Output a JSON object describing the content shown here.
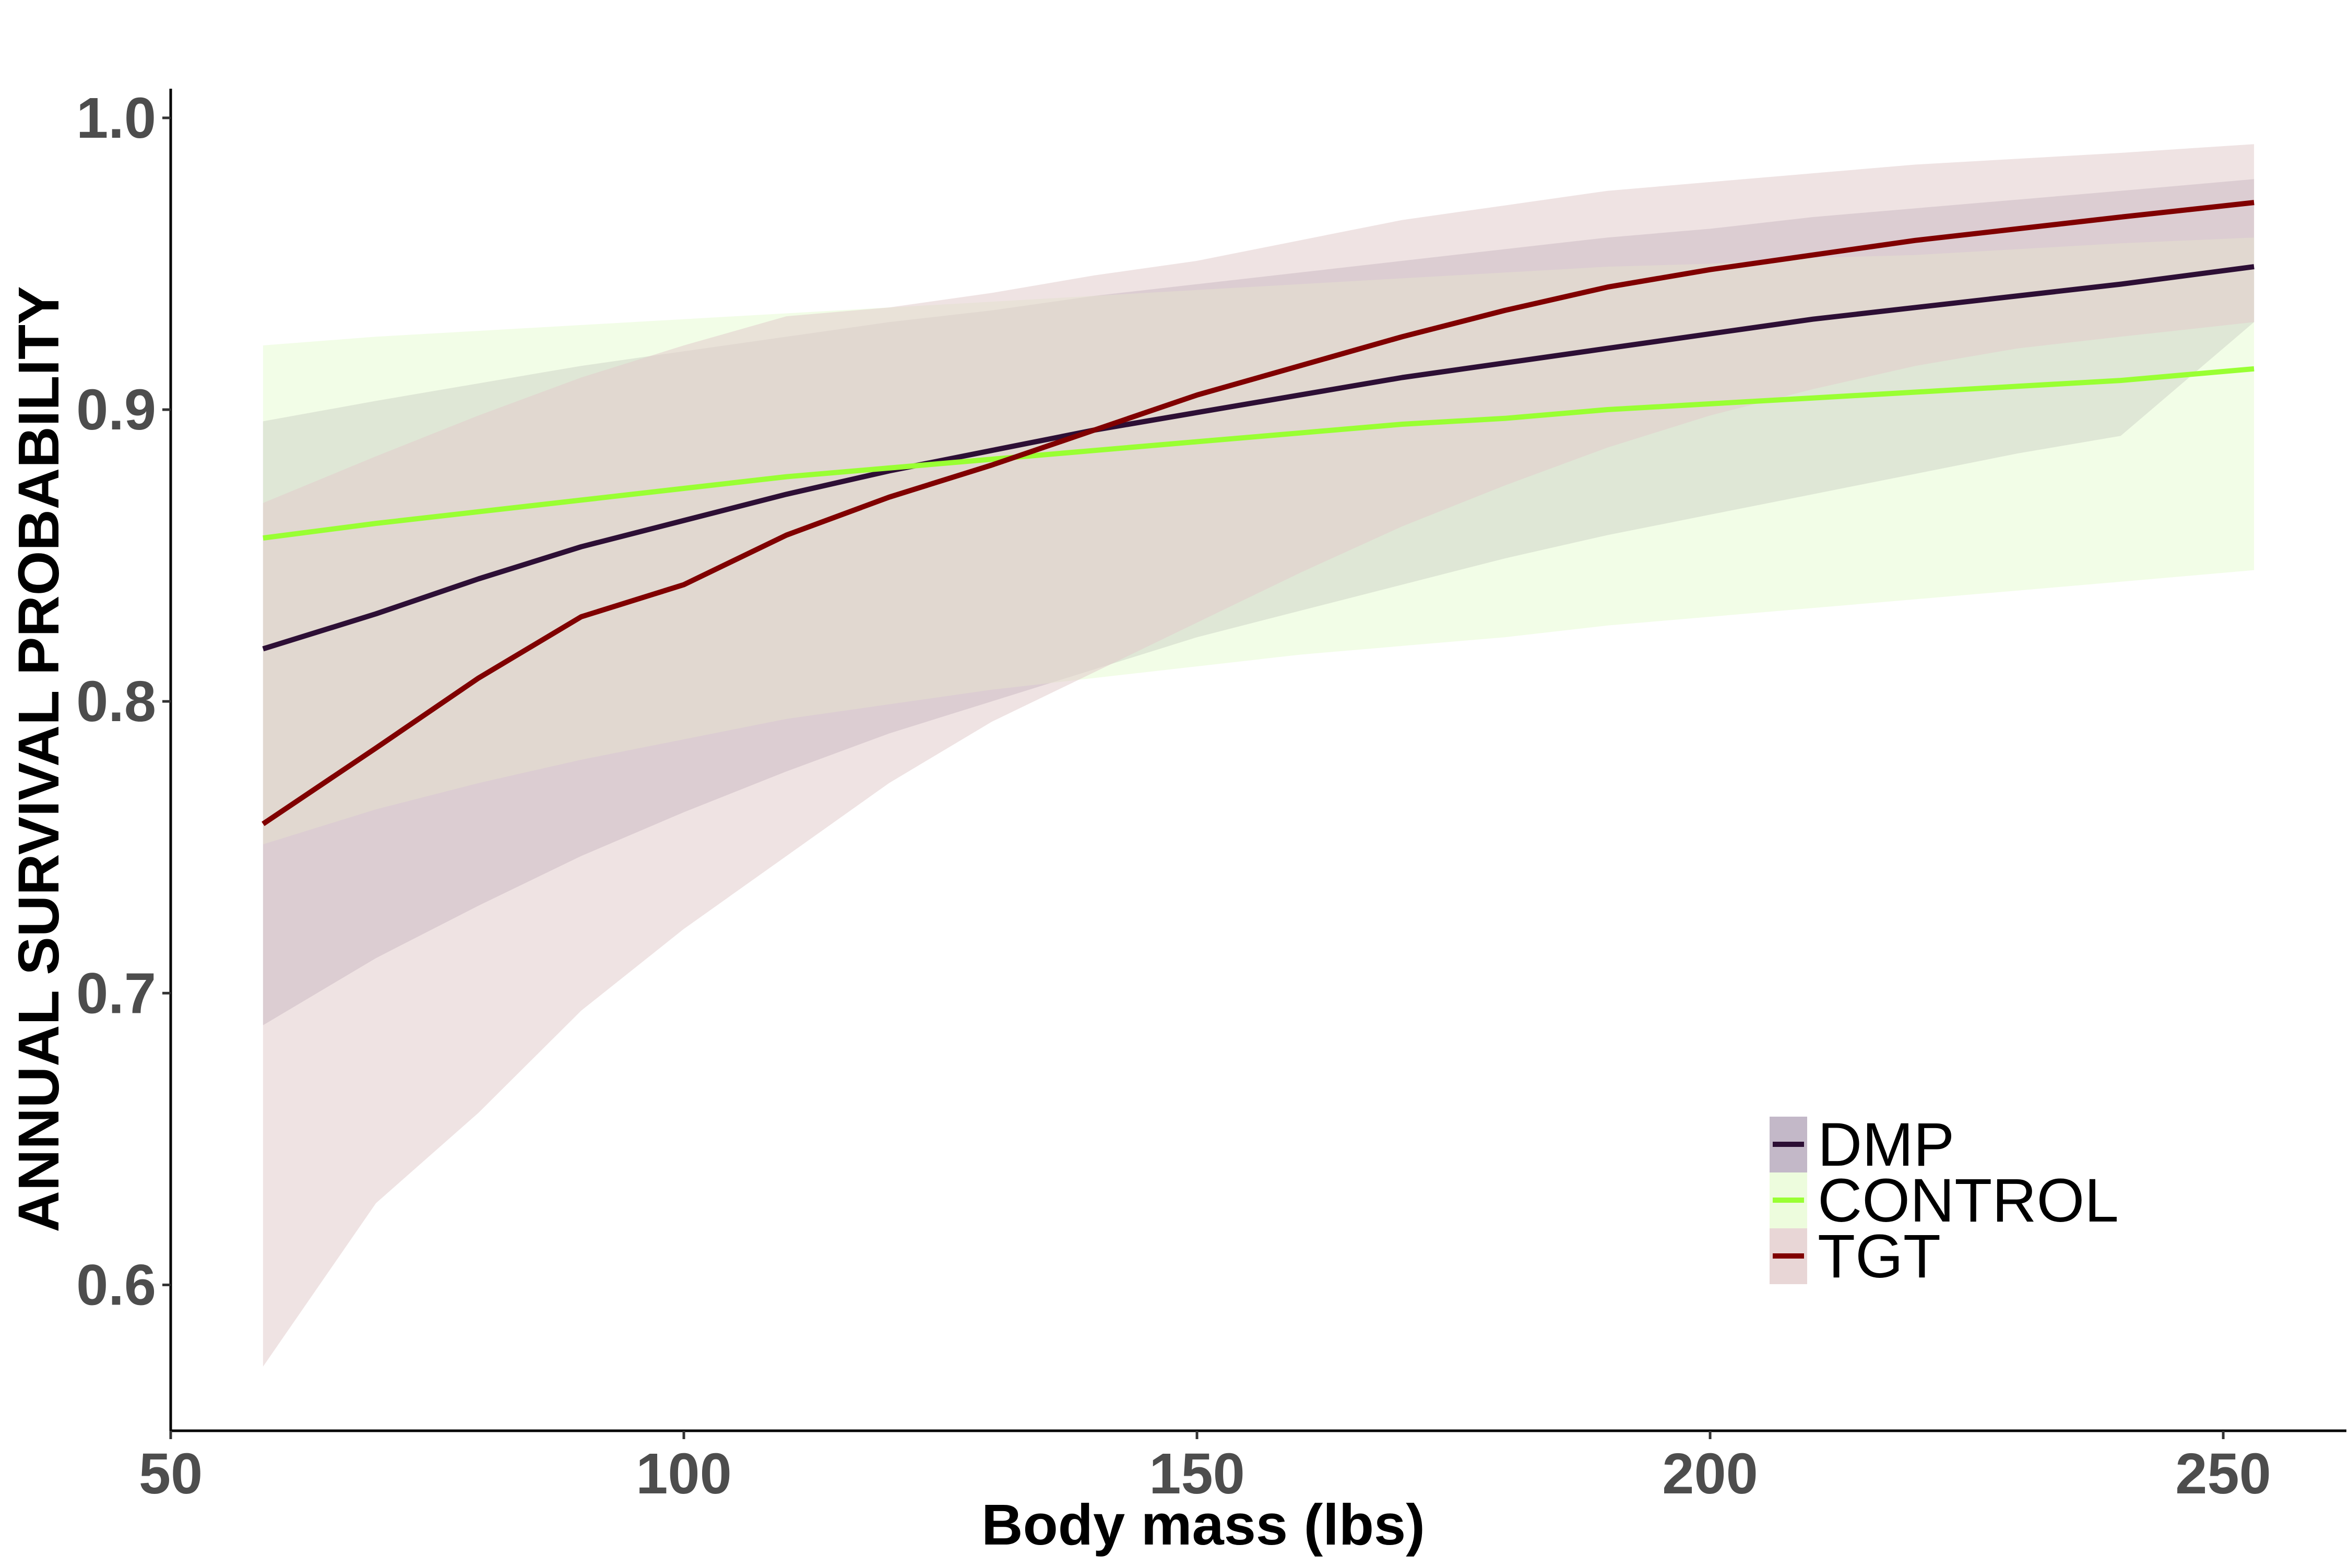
{
  "chart_data": {
    "type": "line",
    "title": "",
    "xlabel": "Body mass (lbs)",
    "ylabel": "ANNUAL SURVIVAL PROBABILITY",
    "xlim": [
      50,
      262
    ],
    "ylim": [
      0.55,
      1.01
    ],
    "xticks": [
      50,
      100,
      150,
      200,
      250
    ],
    "xtick_labels": [
      "50",
      "100",
      "150",
      "200",
      "250"
    ],
    "yticks": [
      0.6,
      0.7,
      0.8,
      0.9,
      1.0
    ],
    "ytick_labels": [
      "0.6",
      "0.7",
      "0.8",
      "0.9",
      "1.0"
    ],
    "grid": false,
    "legend_position": "bottom-right",
    "x": [
      59,
      70,
      80,
      90,
      100,
      110,
      120,
      130,
      140,
      150,
      160,
      170,
      180,
      190,
      200,
      210,
      220,
      230,
      240,
      253
    ],
    "series": [
      {
        "name": "DMP",
        "color": "#2d0f35",
        "fill": "#b4a6ba",
        "values": [
          0.818,
          0.83,
          0.842,
          0.853,
          0.862,
          0.871,
          0.879,
          0.886,
          0.893,
          0.899,
          0.905,
          0.911,
          0.916,
          0.921,
          0.926,
          0.931,
          0.935,
          0.939,
          0.943,
          0.949
        ],
        "lower": [
          0.689,
          0.712,
          0.73,
          0.747,
          0.762,
          0.776,
          0.789,
          0.8,
          0.811,
          0.822,
          0.831,
          0.84,
          0.849,
          0.857,
          0.864,
          0.871,
          0.878,
          0.885,
          0.891,
          0.93
        ],
        "upper": [
          0.896,
          0.903,
          0.909,
          0.915,
          0.92,
          0.925,
          0.93,
          0.934,
          0.939,
          0.943,
          0.947,
          0.951,
          0.955,
          0.959,
          0.962,
          0.966,
          0.969,
          0.972,
          0.975,
          0.979
        ]
      },
      {
        "name": "CONTROL",
        "color": "#99ff33",
        "fill": "#e8fbd4",
        "values": [
          0.856,
          0.861,
          0.865,
          0.869,
          0.873,
          0.877,
          0.88,
          0.883,
          0.886,
          0.889,
          0.892,
          0.895,
          0.897,
          0.9,
          0.902,
          0.904,
          0.906,
          0.908,
          0.91,
          0.914
        ],
        "lower": [
          0.751,
          0.763,
          0.772,
          0.78,
          0.787,
          0.794,
          0.799,
          0.804,
          0.808,
          0.812,
          0.816,
          0.819,
          0.822,
          0.826,
          0.829,
          0.832,
          0.835,
          0.838,
          0.841,
          0.845
        ],
        "upper": [
          0.922,
          0.925,
          0.927,
          0.929,
          0.931,
          0.933,
          0.935,
          0.937,
          0.939,
          0.941,
          0.943,
          0.945,
          0.947,
          0.949,
          0.95,
          0.952,
          0.953,
          0.955,
          0.957,
          0.959
        ]
      },
      {
        "name": "TGT",
        "color": "#800000",
        "fill": "#e2cccc",
        "values": [
          0.758,
          0.784,
          0.808,
          0.829,
          0.84,
          0.857,
          0.87,
          0.881,
          0.893,
          0.905,
          0.915,
          0.925,
          0.934,
          0.942,
          0.948,
          0.953,
          0.958,
          0.962,
          0.966,
          0.971
        ],
        "lower": [
          0.572,
          0.628,
          0.659,
          0.694,
          0.722,
          0.747,
          0.772,
          0.793,
          0.81,
          0.827,
          0.844,
          0.86,
          0.874,
          0.887,
          0.898,
          0.907,
          0.915,
          0.921,
          0.925,
          0.93
        ],
        "upper": [
          0.868,
          0.884,
          0.898,
          0.911,
          0.922,
          0.932,
          0.935,
          0.94,
          0.946,
          0.951,
          0.958,
          0.965,
          0.97,
          0.975,
          0.978,
          0.981,
          0.984,
          0.986,
          0.988,
          0.991
        ]
      }
    ]
  }
}
